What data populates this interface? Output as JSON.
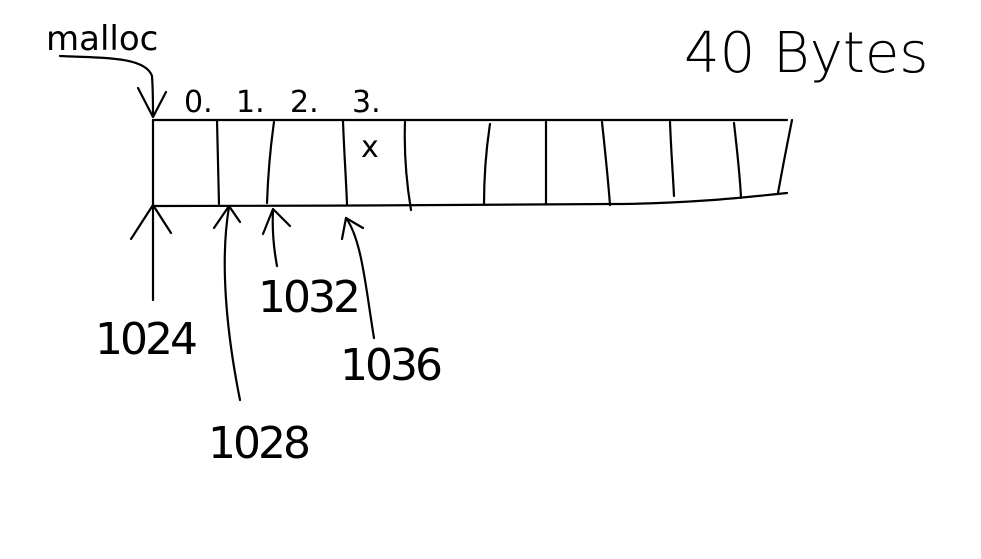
{
  "diagram": {
    "function_label": "malloc",
    "size_label": "40 Bytes",
    "indices": [
      "0.",
      "1.",
      "2.",
      "3."
    ],
    "marked_cell": "x",
    "addresses": [
      "1024",
      "1028",
      "1032",
      "1036"
    ]
  }
}
